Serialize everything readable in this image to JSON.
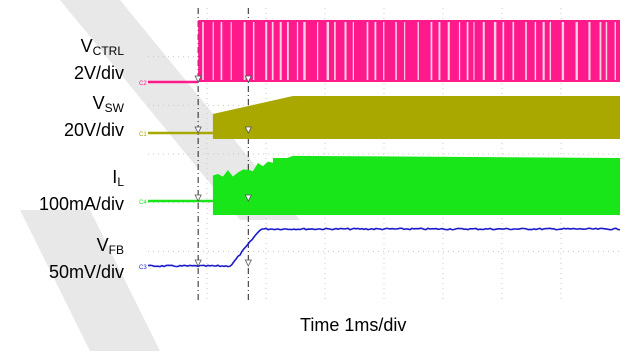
{
  "chart_data": {
    "type": "line",
    "title": "",
    "xlabel": "Time 1ms/div",
    "x_scale": "1ms/div",
    "grid": true,
    "channels": [
      {
        "name_main": "V",
        "name_sub": "CTRL",
        "scale": "2V/div",
        "marker": "C2",
        "color": "#ff1a8c",
        "shape": "pwm-burst",
        "event_div": 0.85
      },
      {
        "name_main": "V",
        "name_sub": "SW",
        "scale": "20V/div",
        "marker": "C1",
        "color": "#a8a800",
        "shape": "switching-ramp-up",
        "event_div": 1.1
      },
      {
        "name_main": "I",
        "name_sub": "L",
        "scale": "100mA/div",
        "marker": "C4",
        "color": "#19e619",
        "shape": "ripple-soft-start",
        "event_div": 1.1
      },
      {
        "name_main": "V",
        "name_sub": "FB",
        "scale": "50mV/div",
        "marker": "C3",
        "color": "#1a1acc",
        "shape": "soft-start-step",
        "event_div": 1.4
      }
    ],
    "cursors_div": [
      0.85,
      1.7
    ]
  }
}
